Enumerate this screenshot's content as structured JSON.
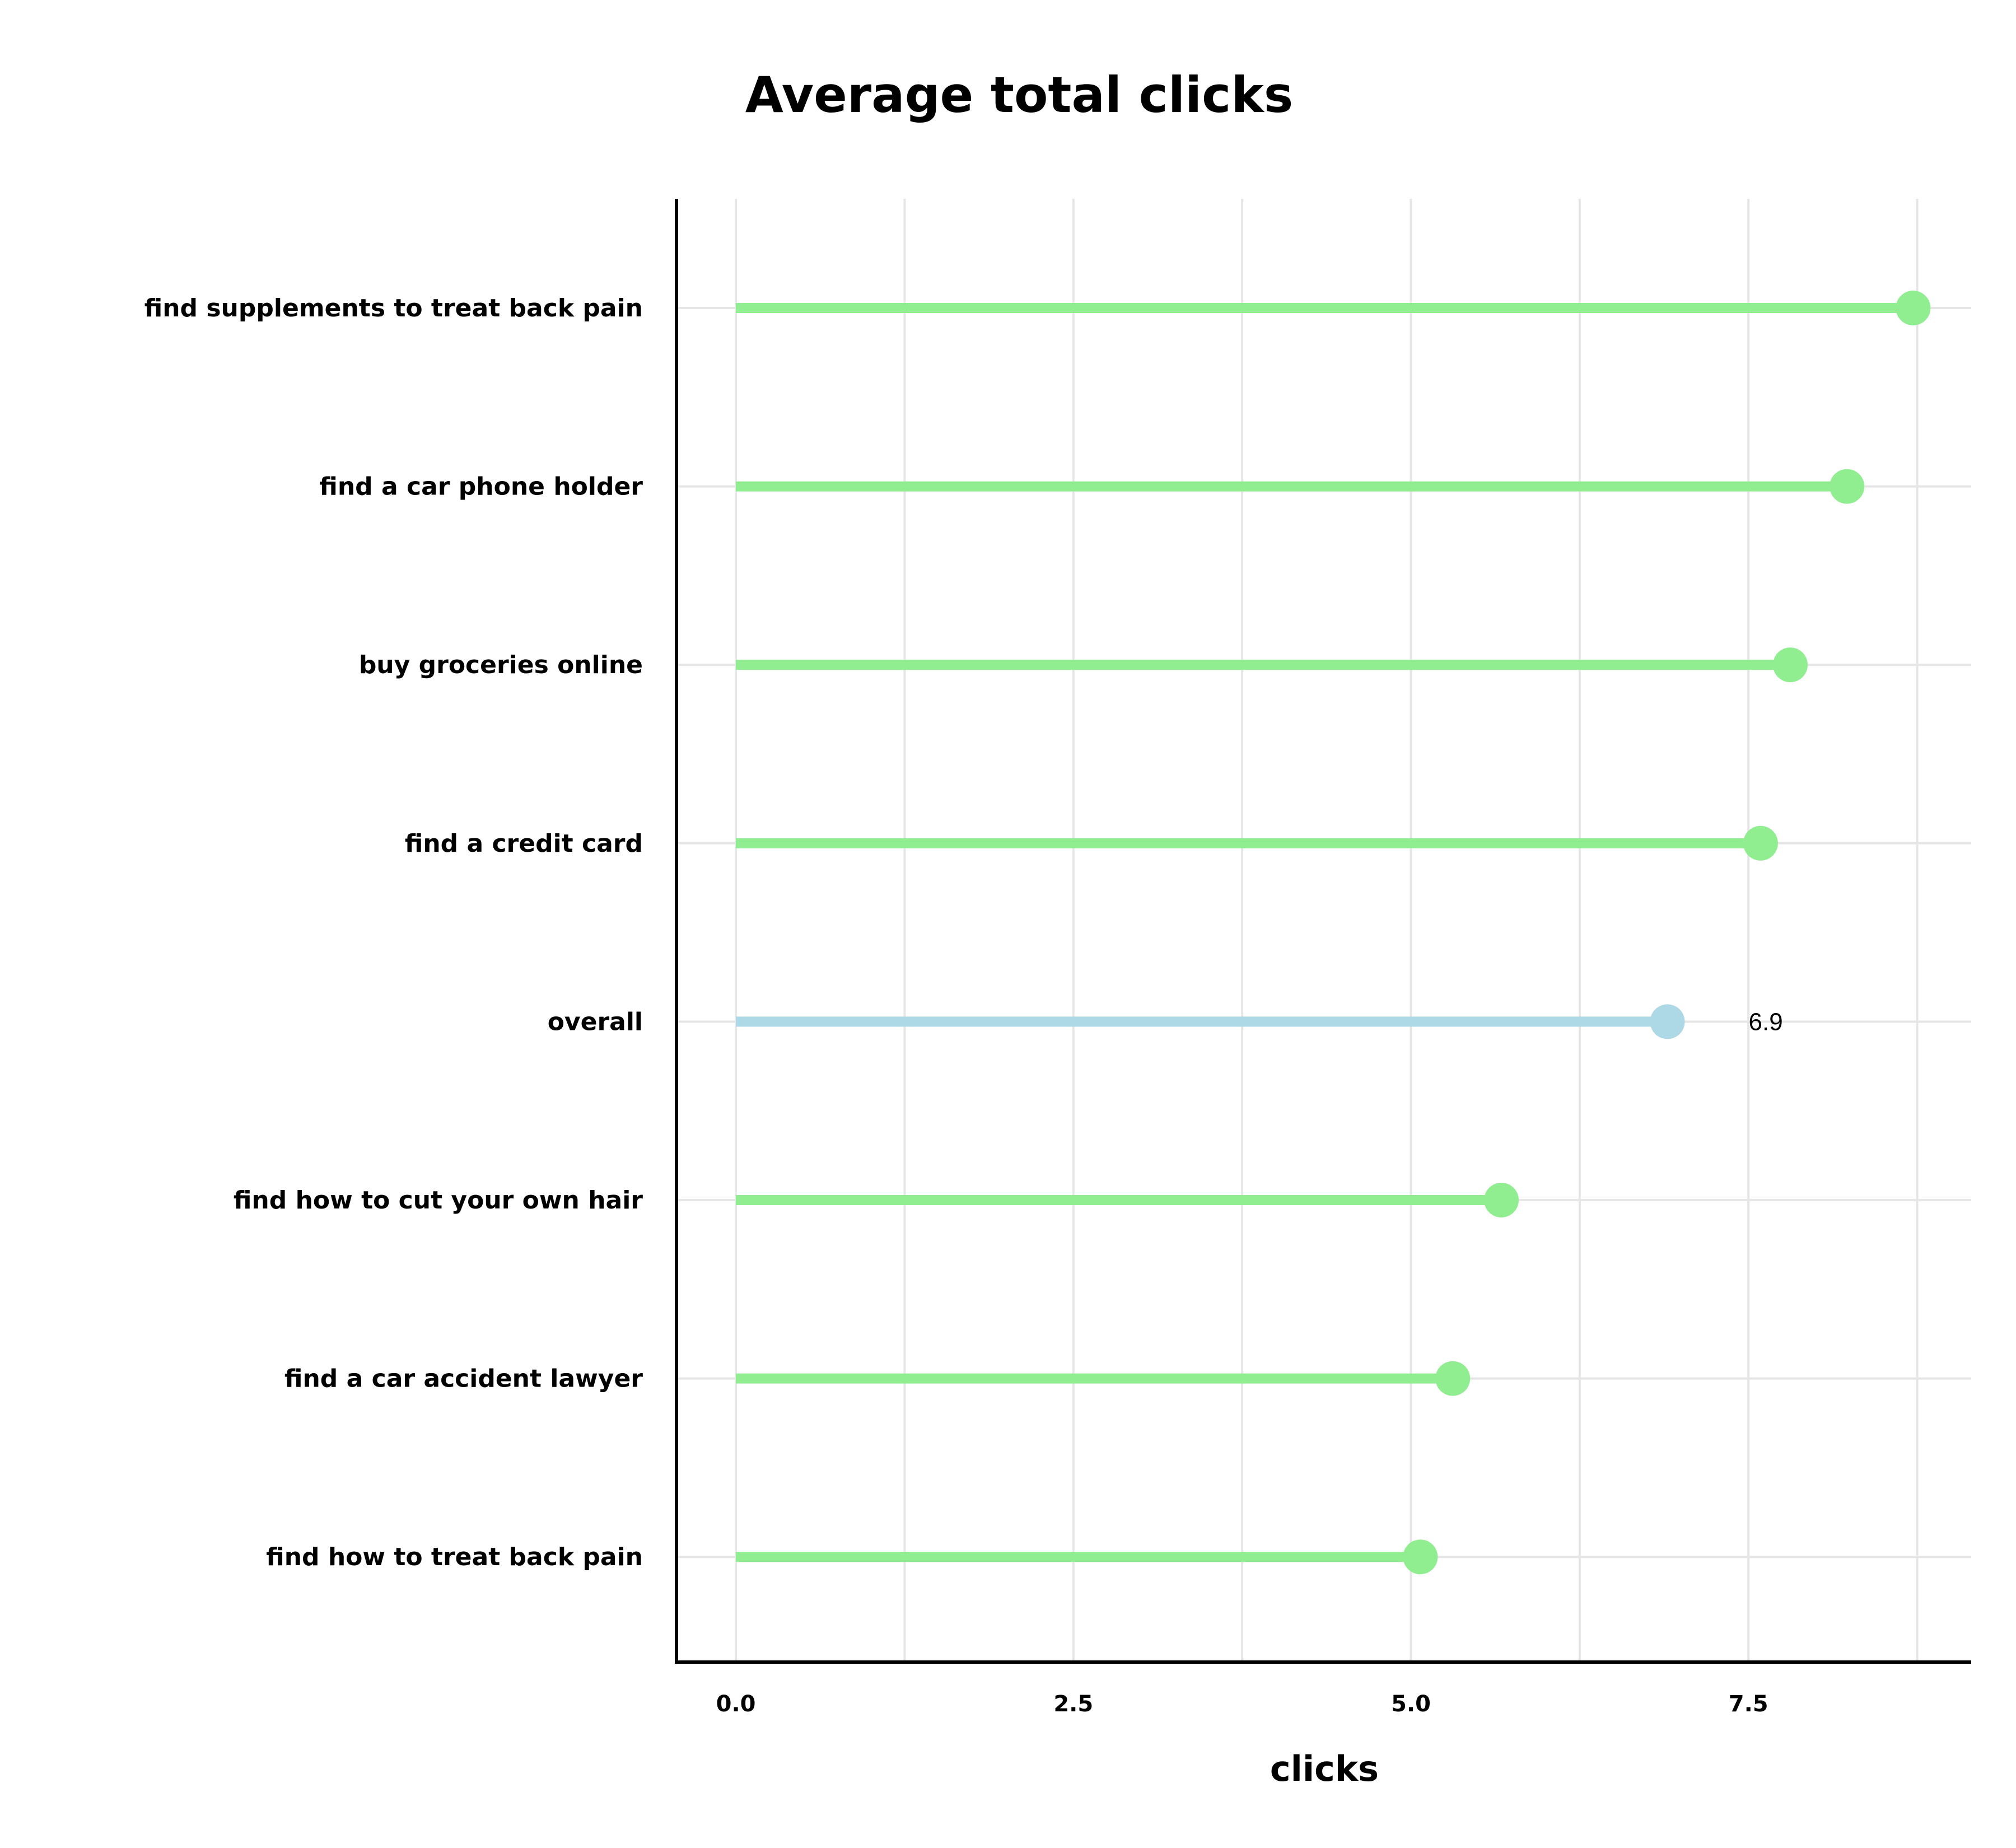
{
  "chart_data": {
    "type": "lollipop",
    "title": "Average total clicks",
    "xlabel": "clicks",
    "ylabel": "",
    "xlim": [
      -0.44,
      9.15
    ],
    "xticks": [
      0.0,
      2.5,
      5.0,
      7.5
    ],
    "xtick_labels": [
      "0.0",
      "2.5",
      "5.0",
      "7.5"
    ],
    "minor_gridlines": [
      1.25,
      3.75,
      6.25,
      8.75
    ],
    "grid": true,
    "legend": "none",
    "categories": [
      "find supplements to treat back pain",
      "find a car phone holder",
      "buy groceries online",
      "find a credit card",
      "overall",
      "find how to cut your own hair",
      "find a car accident lawyer",
      "find how to treat back pain"
    ],
    "values": [
      8.72,
      8.23,
      7.81,
      7.59,
      6.9,
      5.67,
      5.31,
      5.07
    ],
    "colors": [
      "#90EE90",
      "#90EE90",
      "#90EE90",
      "#90EE90",
      "#ADD8E6",
      "#90EE90",
      "#90EE90",
      "#90EE90"
    ],
    "data_labels": [
      "",
      "",
      "",
      "",
      "6.9",
      "",
      "",
      ""
    ],
    "gridline_color": "#e6e6e6",
    "axis_color": "#000000"
  }
}
